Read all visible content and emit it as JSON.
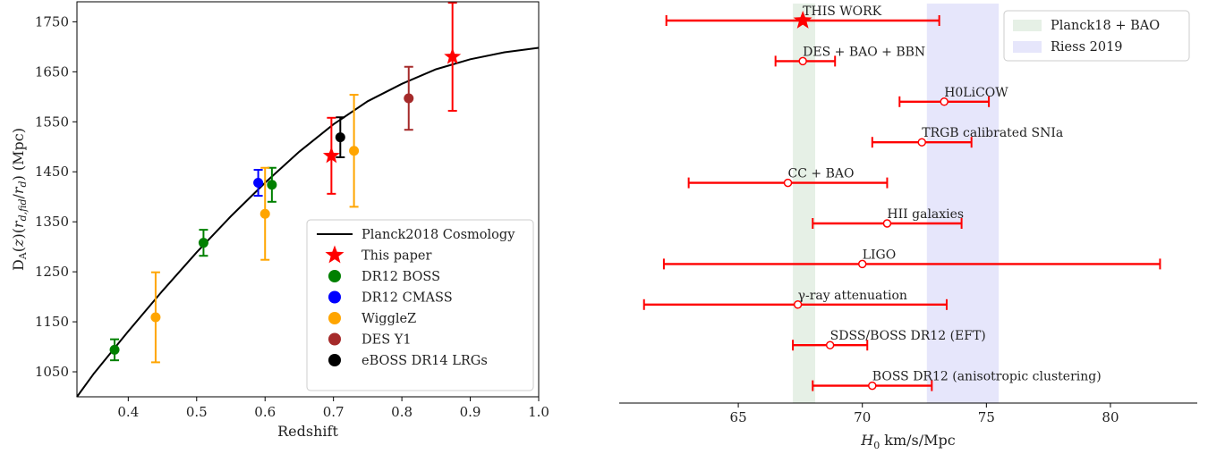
{
  "chart_data": [
    {
      "type": "scatter",
      "xlabel": "Redshift",
      "ylabel": "D_A(z)(r_d,fid/r_d) (Mpc)",
      "xlim": [
        0.325,
        1.0
      ],
      "ylim": [
        1000,
        1790
      ],
      "xticks": [
        0.4,
        0.5,
        0.6,
        0.7,
        0.8,
        0.9,
        1.0
      ],
      "xtick_labels": [
        "0.4",
        "0.5",
        "0.6",
        "0.7",
        "0.8",
        "0.9",
        "1.0"
      ],
      "yticks": [
        1050,
        1150,
        1250,
        1350,
        1450,
        1550,
        1650,
        1750
      ],
      "ytick_labels": [
        "1050",
        "1150",
        "1250",
        "1350",
        "1450",
        "1550",
        "1650",
        "1750"
      ],
      "legend_position": "lower-right",
      "curve": {
        "name": "Planck2018 Cosmology",
        "color": "#000000",
        "x": [
          0.325,
          0.35,
          0.4,
          0.45,
          0.5,
          0.55,
          0.6,
          0.65,
          0.7,
          0.75,
          0.8,
          0.85,
          0.9,
          0.95,
          1.0
        ],
        "y": [
          1000,
          1047,
          1131,
          1212,
          1289,
          1361,
          1428,
          1490,
          1545,
          1591,
          1626,
          1655,
          1675,
          1689,
          1698
        ]
      },
      "series": [
        {
          "name": "This paper",
          "color": "#ff0000",
          "marker": "star",
          "points": [
            {
              "x": 0.697,
              "y": 1482,
              "err": 76
            },
            {
              "x": 0.874,
              "y": 1680,
              "err": 108
            }
          ]
        },
        {
          "name": "DR12 BOSS",
          "color": "#008000",
          "marker": "circle",
          "points": [
            {
              "x": 0.38,
              "y": 1094,
              "err": 21
            },
            {
              "x": 0.51,
              "y": 1308,
              "err": 26
            },
            {
              "x": 0.61,
              "y": 1424,
              "err": 34
            }
          ]
        },
        {
          "name": "DR12 CMASS",
          "color": "#0000ff",
          "marker": "circle",
          "points": [
            {
              "x": 0.59,
              "y": 1428,
              "err": 26
            }
          ]
        },
        {
          "name": "WiggleZ",
          "color": "#ffa500",
          "marker": "circle",
          "points": [
            {
              "x": 0.44,
              "y": 1159,
              "err": 90
            },
            {
              "x": 0.6,
              "y": 1366,
              "err": 92
            },
            {
              "x": 0.73,
              "y": 1492,
              "err": 112
            }
          ]
        },
        {
          "name": "DES Y1",
          "color": "#a52a2a",
          "marker": "circle",
          "points": [
            {
              "x": 0.81,
              "y": 1597,
              "err": 63
            }
          ]
        },
        {
          "name": "eBOSS DR14 LRGs",
          "color": "#000000",
          "marker": "circle",
          "points": [
            {
              "x": 0.71,
              "y": 1519,
              "err": 40
            }
          ]
        }
      ]
    },
    {
      "type": "scatter",
      "xlabel": "H0 km/s/Mpc",
      "xlim": [
        60.2,
        83.5
      ],
      "xticks": [
        65,
        70,
        75,
        80
      ],
      "xtick_labels": [
        "65",
        "70",
        "75",
        "80"
      ],
      "legend_position": "top-right",
      "bands": [
        {
          "name": "Planck18 + BAO",
          "x_min": 67.2,
          "x_max": 68.1,
          "color": "#e6f0e6"
        },
        {
          "name": "Riess 2019",
          "x_min": 72.6,
          "x_max": 75.5,
          "color": "#e6e6fb"
        }
      ],
      "measurements": [
        {
          "label": "THIS WORK",
          "value": 67.6,
          "low": 62.1,
          "high": 73.1,
          "marker": "star"
        },
        {
          "label": "DES + BAO + BBN",
          "value": 67.6,
          "low": 66.5,
          "high": 68.9,
          "marker": "circle"
        },
        {
          "label": "H0LiCOW",
          "value": 73.3,
          "low": 71.5,
          "high": 75.1,
          "marker": "circle"
        },
        {
          "label": "TRGB calibrated SNIa",
          "value": 72.4,
          "low": 70.4,
          "high": 74.4,
          "marker": "circle"
        },
        {
          "label": "CC + BAO",
          "value": 67.0,
          "low": 63.0,
          "high": 71.0,
          "marker": "circle"
        },
        {
          "label": "HII galaxies",
          "value": 71.0,
          "low": 68.0,
          "high": 74.0,
          "marker": "circle"
        },
        {
          "label": "LIGO",
          "value": 70.0,
          "low": 62.0,
          "high": 82.0,
          "marker": "circle"
        },
        {
          "label": "γ-ray attenuation",
          "value": 67.4,
          "low": 61.2,
          "high": 73.4,
          "marker": "circle"
        },
        {
          "label": "SDSS/BOSS DR12 (EFT)",
          "value": 68.7,
          "low": 67.2,
          "high": 70.2,
          "marker": "circle"
        },
        {
          "label": "BOSS DR12 (anisotropic clustering)",
          "value": 70.4,
          "low": 68.0,
          "high": 72.8,
          "marker": "circle"
        }
      ],
      "error_color": "#ff0000"
    }
  ]
}
